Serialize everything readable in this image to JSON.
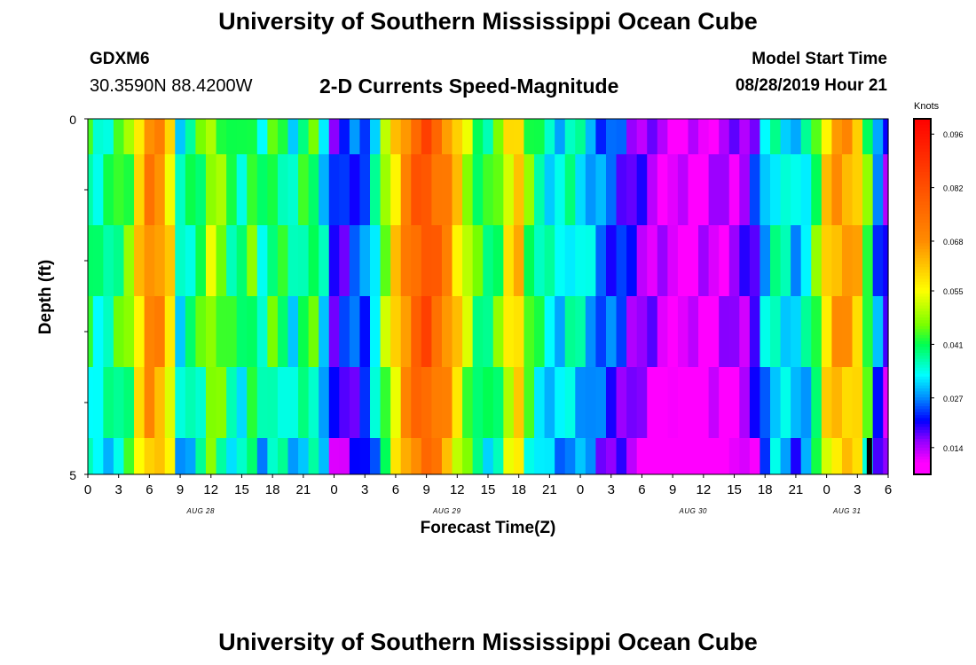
{
  "header": {
    "main_title": "University of Southern Mississippi Ocean Cube",
    "station": "GDXM6",
    "coords": "30.3590N 88.4200W",
    "subtitle": "2-D Currents Speed-Magnitude",
    "start_label": "Model Start Time",
    "start_value": "08/28/2019 Hour 21",
    "footer_title": "University of Southern Mississippi Ocean Cube"
  },
  "chart_data": {
    "type": "heatmap",
    "title": "2-D Currents Speed-Magnitude",
    "xlabel": "Forecast Time(Z)",
    "ylabel": "Depth (ft)",
    "x_ticks": [
      "0",
      "3",
      "6",
      "9",
      "12",
      "15",
      "18",
      "21",
      "0",
      "3",
      "6",
      "9",
      "12",
      "15",
      "18",
      "21",
      "0",
      "3",
      "6",
      "9",
      "12",
      "15",
      "18",
      "21",
      "0",
      "3",
      "6"
    ],
    "day_labels": [
      {
        "label": "AUG 28",
        "hour": 11
      },
      {
        "label": "AUG 29",
        "hour": 35
      },
      {
        "label": "AUG 30",
        "hour": 59
      },
      {
        "label": "AUG 31",
        "hour": 74
      }
    ],
    "y_ticks": [
      "0",
      "5"
    ],
    "ylim": [
      0,
      5
    ],
    "xlim": [
      0,
      78
    ],
    "colorbar": {
      "title": "Knots",
      "ticks": [
        0.096,
        0.082,
        0.068,
        0.055,
        0.041,
        0.027,
        0.014
      ],
      "range": [
        0.007,
        0.1
      ]
    },
    "depth_levels": [
      0,
      0.5,
      1.5,
      2.5,
      3.5,
      4.5
    ],
    "profile": [
      [
        0,
        0.04
      ],
      [
        1,
        0.036
      ],
      [
        2,
        0.038
      ],
      [
        3,
        0.042
      ],
      [
        4,
        0.046
      ],
      [
        5,
        0.06
      ],
      [
        6,
        0.07
      ],
      [
        7,
        0.068
      ],
      [
        8,
        0.058
      ],
      [
        9,
        0.034
      ],
      [
        10,
        0.038
      ],
      [
        11,
        0.042
      ],
      [
        12,
        0.05
      ],
      [
        13,
        0.046
      ],
      [
        14,
        0.04
      ],
      [
        15,
        0.038
      ],
      [
        16,
        0.044
      ],
      [
        17,
        0.036
      ],
      [
        18,
        0.042
      ],
      [
        19,
        0.04
      ],
      [
        20,
        0.034
      ],
      [
        21,
        0.04
      ],
      [
        22,
        0.042
      ],
      [
        23,
        0.032
      ],
      [
        24,
        0.02
      ],
      [
        25,
        0.021
      ],
      [
        26,
        0.024
      ],
      [
        27,
        0.025
      ],
      [
        28,
        0.034
      ],
      [
        29,
        0.048
      ],
      [
        30,
        0.06
      ],
      [
        31,
        0.07
      ],
      [
        32,
        0.078
      ],
      [
        33,
        0.082
      ],
      [
        34,
        0.076
      ],
      [
        35,
        0.07
      ],
      [
        36,
        0.06
      ],
      [
        37,
        0.05
      ],
      [
        38,
        0.042
      ],
      [
        39,
        0.04
      ],
      [
        40,
        0.044
      ],
      [
        41,
        0.056
      ],
      [
        42,
        0.062
      ],
      [
        43,
        0.044
      ],
      [
        44,
        0.038
      ],
      [
        45,
        0.034
      ],
      [
        46,
        0.032
      ],
      [
        47,
        0.036
      ],
      [
        48,
        0.034
      ],
      [
        49,
        0.03
      ],
      [
        50,
        0.026
      ],
      [
        51,
        0.024
      ],
      [
        52,
        0.022
      ],
      [
        53,
        0.018
      ],
      [
        54,
        0.016
      ],
      [
        55,
        0.014
      ],
      [
        56,
        0.012
      ],
      [
        57,
        0.01
      ],
      [
        58,
        0.01
      ],
      [
        59,
        0.01
      ],
      [
        60,
        0.011
      ],
      [
        61,
        0.012
      ],
      [
        62,
        0.013
      ],
      [
        63,
        0.014
      ],
      [
        64,
        0.016
      ],
      [
        65,
        0.02
      ],
      [
        66,
        0.03
      ],
      [
        67,
        0.036
      ],
      [
        68,
        0.034
      ],
      [
        69,
        0.03
      ],
      [
        70,
        0.034
      ],
      [
        71,
        0.044
      ],
      [
        72,
        0.06
      ],
      [
        73,
        0.066
      ],
      [
        74,
        0.066
      ],
      [
        75,
        0.062
      ],
      [
        76,
        0.044
      ],
      [
        77,
        0.026
      ],
      [
        78,
        0.018
      ]
    ],
    "note_marker": {
      "hour": 76,
      "depth_top": 4.5
    }
  }
}
